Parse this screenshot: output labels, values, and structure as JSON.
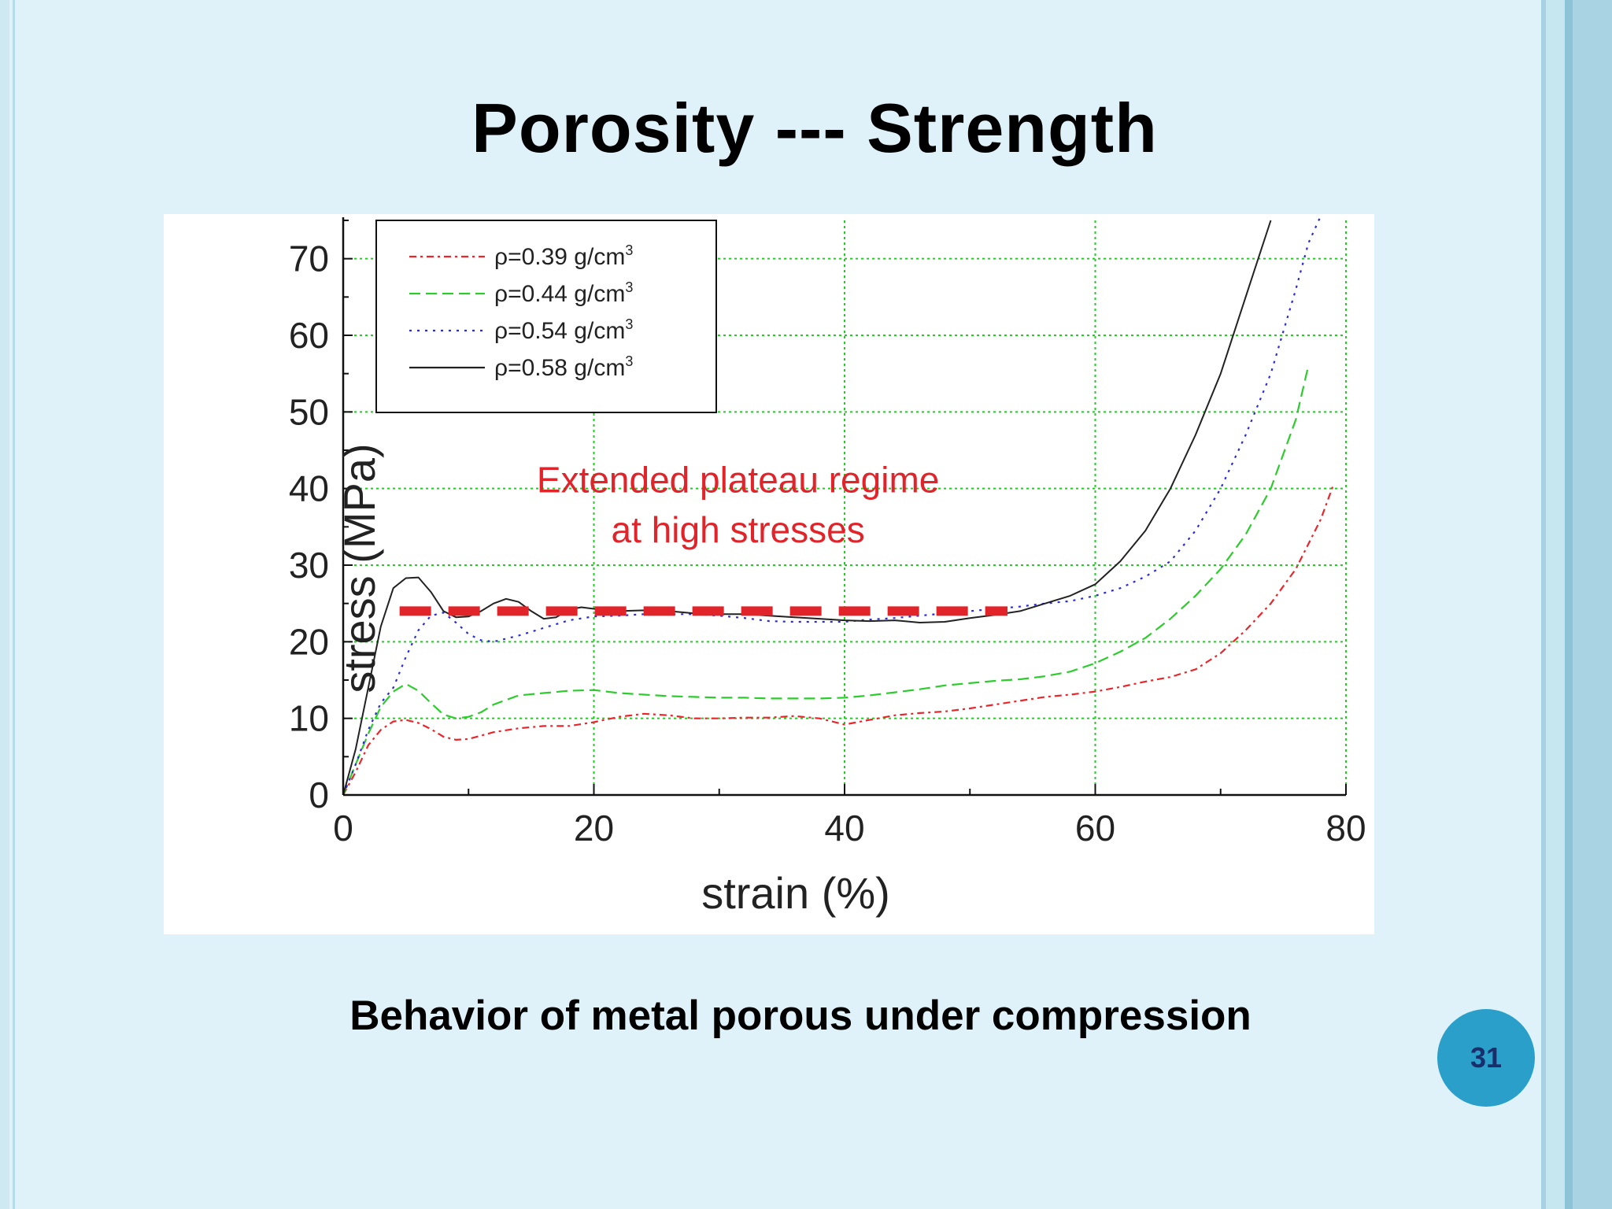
{
  "slide": {
    "title": "Porosity --- Strength",
    "caption": "Behavior of metal porous under compression",
    "page_number": "31"
  },
  "colors": {
    "background": "#dff2f9",
    "badge": "#2a9fc9",
    "grid": "#22cc22",
    "annotation": "#e0242a"
  },
  "chart_data": {
    "type": "line",
    "xlabel": "strain (%)",
    "ylabel": "stress (MPa)",
    "xlim": [
      0,
      80
    ],
    "ylim": [
      0,
      75
    ],
    "xticks": [
      0,
      20,
      40,
      60,
      80
    ],
    "yticks": [
      0,
      10,
      20,
      30,
      40,
      50,
      60,
      70
    ],
    "grid": true,
    "legend_position": "top-left",
    "series": [
      {
        "name": "ρ=0.39 g/cm³",
        "legend_label": "ρ=0.39 g/cm",
        "legend_sup": "3",
        "color": "#e8262c",
        "dash": "9 5 3 5",
        "points": [
          [
            0,
            0
          ],
          [
            1,
            3
          ],
          [
            2,
            6.5
          ],
          [
            3,
            8.5
          ],
          [
            4,
            9.6
          ],
          [
            5,
            9.8
          ],
          [
            6,
            9.4
          ],
          [
            7,
            8.6
          ],
          [
            8,
            7.6
          ],
          [
            9,
            7.2
          ],
          [
            10,
            7.3
          ],
          [
            12,
            8.2
          ],
          [
            14,
            8.7
          ],
          [
            16,
            9
          ],
          [
            18,
            9
          ],
          [
            20,
            9.5
          ],
          [
            22,
            10.2
          ],
          [
            24,
            10.6
          ],
          [
            26,
            10.4
          ],
          [
            28,
            10
          ],
          [
            30,
            10
          ],
          [
            32,
            10.1
          ],
          [
            34,
            10.1
          ],
          [
            36,
            10.3
          ],
          [
            38,
            10
          ],
          [
            40,
            9.2
          ],
          [
            42,
            9.8
          ],
          [
            44,
            10.4
          ],
          [
            46,
            10.7
          ],
          [
            48,
            10.9
          ],
          [
            50,
            11.3
          ],
          [
            52,
            11.8
          ],
          [
            54,
            12.3
          ],
          [
            56,
            12.8
          ],
          [
            58,
            13.1
          ],
          [
            60,
            13.5
          ],
          [
            62,
            14.1
          ],
          [
            64,
            14.8
          ],
          [
            66,
            15.4
          ],
          [
            68,
            16.4
          ],
          [
            70,
            18.5
          ],
          [
            72,
            21.5
          ],
          [
            74,
            25
          ],
          [
            76,
            29.5
          ],
          [
            78,
            36
          ],
          [
            79,
            40.5
          ]
        ]
      },
      {
        "name": "ρ=0.44 g/cm³",
        "legend_label": "ρ=0.44 g/cm",
        "legend_sup": "3",
        "color": "#2ccc2c",
        "dash": "14 7",
        "points": [
          [
            0,
            0
          ],
          [
            1,
            4
          ],
          [
            2,
            8
          ],
          [
            3,
            11.5
          ],
          [
            4,
            13.5
          ],
          [
            5,
            14.5
          ],
          [
            6,
            13.6
          ],
          [
            7,
            12
          ],
          [
            8,
            10.5
          ],
          [
            9,
            10
          ],
          [
            10,
            10.2
          ],
          [
            11,
            10.8
          ],
          [
            12,
            11.8
          ],
          [
            14,
            13
          ],
          [
            16,
            13.3
          ],
          [
            18,
            13.6
          ],
          [
            20,
            13.7
          ],
          [
            22,
            13.3
          ],
          [
            24,
            13.1
          ],
          [
            26,
            12.9
          ],
          [
            28,
            12.8
          ],
          [
            30,
            12.7
          ],
          [
            32,
            12.7
          ],
          [
            34,
            12.6
          ],
          [
            36,
            12.6
          ],
          [
            38,
            12.6
          ],
          [
            40,
            12.7
          ],
          [
            42,
            13
          ],
          [
            44,
            13.4
          ],
          [
            46,
            13.8
          ],
          [
            48,
            14.3
          ],
          [
            50,
            14.6
          ],
          [
            52,
            14.9
          ],
          [
            54,
            15.1
          ],
          [
            56,
            15.5
          ],
          [
            58,
            16.1
          ],
          [
            60,
            17.2
          ],
          [
            62,
            18.7
          ],
          [
            64,
            20.5
          ],
          [
            66,
            23
          ],
          [
            68,
            26
          ],
          [
            70,
            29.5
          ],
          [
            72,
            34
          ],
          [
            74,
            40
          ],
          [
            76,
            49
          ],
          [
            77,
            56
          ]
        ]
      },
      {
        "name": "ρ=0.54 g/cm³",
        "legend_label": "ρ=0.54 g/cm",
        "legend_sup": "3",
        "color": "#2b2bdc",
        "dash": "3 7",
        "points": [
          [
            0,
            0
          ],
          [
            1,
            4
          ],
          [
            2,
            8.5
          ],
          [
            3,
            12
          ],
          [
            4,
            14
          ],
          [
            5,
            18
          ],
          [
            6,
            21.5
          ],
          [
            7,
            23.4
          ],
          [
            8,
            23.8
          ],
          [
            9,
            22.5
          ],
          [
            10,
            21
          ],
          [
            11,
            20.2
          ],
          [
            12,
            20
          ],
          [
            14,
            20.8
          ],
          [
            16,
            21.8
          ],
          [
            18,
            22.8
          ],
          [
            20,
            23.3
          ],
          [
            22,
            23.4
          ],
          [
            24,
            23.6
          ],
          [
            26,
            23.6
          ],
          [
            28,
            23.6
          ],
          [
            30,
            23.4
          ],
          [
            32,
            23.1
          ],
          [
            34,
            22.7
          ],
          [
            36,
            22.6
          ],
          [
            38,
            22.6
          ],
          [
            40,
            22.6
          ],
          [
            42,
            22.9
          ],
          [
            44,
            23.1
          ],
          [
            46,
            23.4
          ],
          [
            48,
            23.7
          ],
          [
            50,
            24
          ],
          [
            52,
            24.3
          ],
          [
            54,
            24.6
          ],
          [
            56,
            25
          ],
          [
            58,
            25.3
          ],
          [
            60,
            26
          ],
          [
            62,
            27
          ],
          [
            64,
            28.5
          ],
          [
            66,
            30.5
          ],
          [
            68,
            34.5
          ],
          [
            70,
            40
          ],
          [
            72,
            47
          ],
          [
            74,
            55
          ],
          [
            76,
            66
          ],
          [
            77,
            72
          ],
          [
            78,
            76
          ]
        ]
      },
      {
        "name": "ρ=0.58 g/cm³",
        "legend_label": "ρ=0.58 g/cm",
        "legend_sup": "3",
        "color": "#222222",
        "dash": "",
        "points": [
          [
            0,
            0
          ],
          [
            1,
            6
          ],
          [
            2,
            14
          ],
          [
            3,
            22
          ],
          [
            4,
            27
          ],
          [
            5,
            28.3
          ],
          [
            6,
            28.4
          ],
          [
            7,
            26.5
          ],
          [
            8,
            24
          ],
          [
            9,
            23.2
          ],
          [
            10,
            23.3
          ],
          [
            11,
            24
          ],
          [
            12,
            25
          ],
          [
            13,
            25.6
          ],
          [
            14,
            25.2
          ],
          [
            15,
            24
          ],
          [
            16,
            23
          ],
          [
            17,
            23.2
          ],
          [
            18,
            24.2
          ],
          [
            19,
            24.5
          ],
          [
            20,
            24.3
          ],
          [
            22,
            24
          ],
          [
            24,
            24.1
          ],
          [
            26,
            24
          ],
          [
            28,
            23.7
          ],
          [
            30,
            23.6
          ],
          [
            32,
            23.6
          ],
          [
            34,
            23.4
          ],
          [
            36,
            23.2
          ],
          [
            38,
            23
          ],
          [
            40,
            22.8
          ],
          [
            42,
            22.7
          ],
          [
            44,
            22.8
          ],
          [
            46,
            22.5
          ],
          [
            48,
            22.6
          ],
          [
            50,
            23.1
          ],
          [
            52,
            23.5
          ],
          [
            54,
            24
          ],
          [
            56,
            25
          ],
          [
            58,
            26
          ],
          [
            60,
            27.5
          ],
          [
            62,
            30.5
          ],
          [
            64,
            34.5
          ],
          [
            66,
            40
          ],
          [
            68,
            47
          ],
          [
            70,
            55
          ],
          [
            72,
            65
          ],
          [
            73,
            70
          ],
          [
            74,
            75
          ]
        ]
      }
    ],
    "plateau_level": 24,
    "plateau_range": [
      4.5,
      53
    ],
    "annotations": [
      {
        "text": "Extended plateau regime",
        "x": 31.5,
        "y": 39.5
      },
      {
        "text": "at high stresses",
        "x": 31.5,
        "y": 33
      }
    ]
  }
}
